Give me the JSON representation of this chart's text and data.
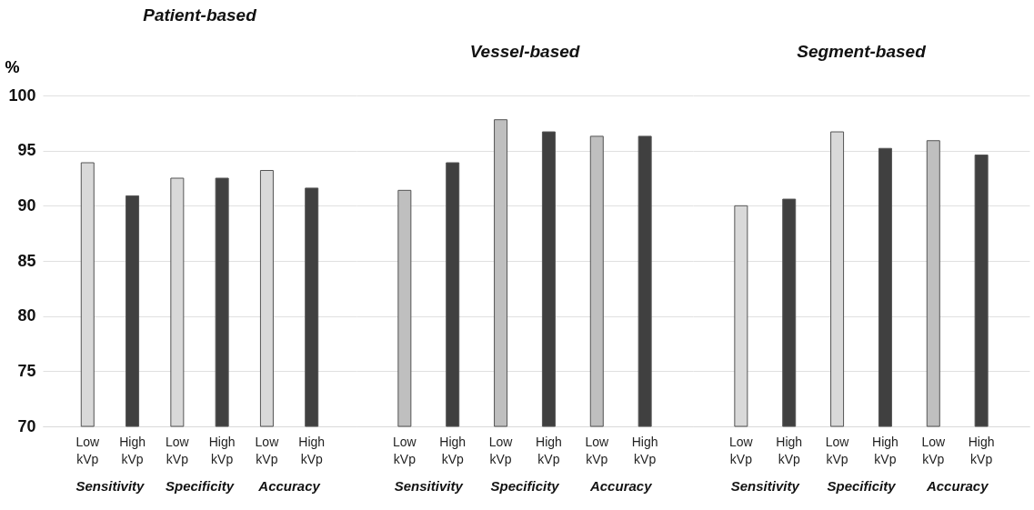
{
  "chart_data": [
    {
      "type": "bar",
      "title": "Patient-based",
      "ylabel": "%",
      "categories": [
        "Low kVp",
        "High kVp",
        "Low kVp",
        "High kVp",
        "Low kVp",
        "High kVp"
      ],
      "values": [
        93.9,
        90.9,
        92.5,
        92.5,
        93.2,
        91.6
      ],
      "colors": [
        "#d9d9d9",
        "#404040",
        "#d9d9d9",
        "#404040",
        "#d9d9d9",
        "#404040"
      ],
      "ylim": [
        70,
        100
      ],
      "yticks": [
        70,
        75,
        80,
        85,
        90,
        95,
        100
      ],
      "grid": "y",
      "annotations": [
        "Sensitivity",
        "Specificity",
        "Accuracy"
      ]
    },
    {
      "type": "bar",
      "title": "Vessel-based",
      "categories": [
        "Low kVp",
        "High kVp",
        "Low kVp",
        "High kVp",
        "Low kVp",
        "High kVp"
      ],
      "values": [
        91.4,
        93.9,
        97.8,
        96.7,
        96.3,
        96.3
      ],
      "colors": [
        "#bfbfbf",
        "#404040",
        "#bfbfbf",
        "#404040",
        "#bfbfbf",
        "#404040"
      ],
      "ylim": [
        70,
        100
      ],
      "yticks": [
        70,
        75,
        80,
        85,
        90,
        95,
        100
      ],
      "grid": "y",
      "tick_labels": "x",
      "annotations": [
        "Sensitivity",
        "Specificity",
        "Accuracy"
      ]
    },
    {
      "type": "bar",
      "title": "Segment-based",
      "categories": [
        "Low kVp",
        "High kVp",
        "Low kVp",
        "High kVp",
        "Low kVp",
        "High kVp"
      ],
      "values": [
        90.0,
        90.6,
        96.7,
        95.2,
        95.9,
        94.6
      ],
      "colors": [
        "#d9d9d9",
        "#404040",
        "#d9d9d9",
        "#404040",
        "#bfbfbf",
        "#404040"
      ],
      "ylim": [
        70,
        100
      ],
      "yticks": [
        70,
        75,
        80,
        85,
        90,
        95,
        100
      ],
      "grid": "y",
      "tick_labels": "x",
      "annotations": [
        "Sensitivity",
        "Specificity",
        "Accuracy"
      ]
    }
  ]
}
